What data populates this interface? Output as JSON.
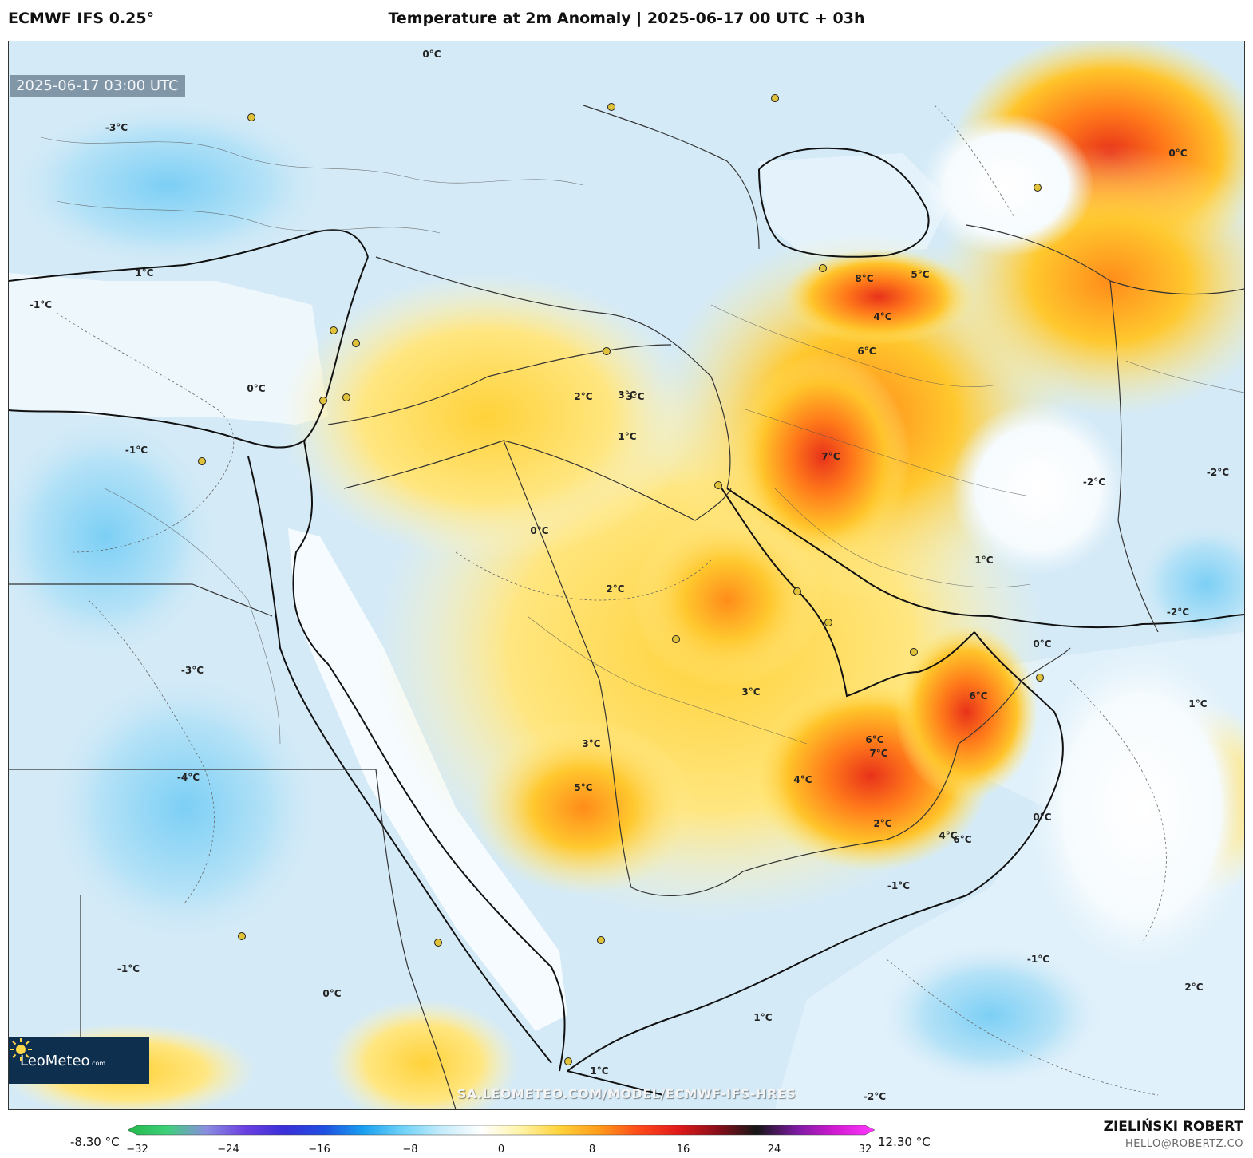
{
  "header": {
    "model": "ECMWF IFS 0.25°",
    "title": "Temperature at 2m Anomaly | 2025-06-17 00 UTC + 03h"
  },
  "map": {
    "timestamp": "2025-06-17 03:00 UTC",
    "watermark": "SA.LEOMETEO.COM/MODEL/ECMWF-IFS-HRES",
    "logo_text": "LeoMeteo",
    "logo_suffix": ".com",
    "anomaly_labels": [
      "0°C",
      "-3°C",
      "1°C",
      "-1°C",
      "8°C",
      "5°C",
      "4°C",
      "6°C",
      "2°C",
      "3°C",
      "7°C",
      "-2°C",
      "-4°C",
      "-1°C",
      "2°C",
      "0°C",
      "1°C",
      "3°C",
      "6°C",
      "7°C",
      "4°C",
      "5°C",
      "-2°C",
      "1°C",
      "0°C",
      "3°C",
      "6°C",
      "0°C",
      "-1°C",
      "2°C",
      "1°C",
      "-1°C",
      "0°C",
      "-2°C",
      "1°C",
      "-3°C",
      "3°C",
      "0°C",
      "-2°C",
      "4°C",
      "6°C",
      "2°C",
      "-1°C",
      "1°C",
      "0°C"
    ]
  },
  "legend": {
    "min_label": "-8.30 °C",
    "max_label": "12.30 °C",
    "ticks": [
      "−32",
      "−24",
      "−16",
      "−8",
      "0",
      "8",
      "16",
      "24",
      "32"
    ],
    "scale_min": -32,
    "scale_max": 32,
    "stop_colors": [
      "#23b84a",
      "#3fcf7a",
      "#8a8de0",
      "#6a3fe0",
      "#3a2fd8",
      "#1f4fe0",
      "#1aa0f0",
      "#6fd2f7",
      "#c6ecfa",
      "#ffffff",
      "#fff3a6",
      "#ffd23a",
      "#ff9a1a",
      "#ff4a1a",
      "#e01a1a",
      "#8a0e1a",
      "#161616",
      "#7a1aa0",
      "#d21ad2",
      "#ff3aff"
    ]
  },
  "credit": {
    "author": "ZIELIŃSKI ROBERT",
    "email": "HELLO@ROBERTZ.CO"
  }
}
